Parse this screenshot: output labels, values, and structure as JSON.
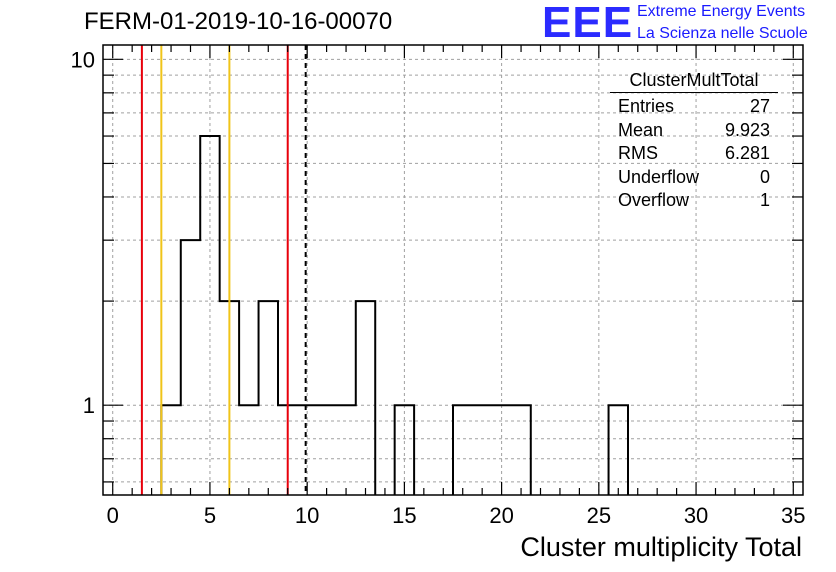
{
  "run_title": "FERM-01-2019-10-16-00070",
  "logo": {
    "mark": "EEE",
    "line1": "Extreme Energy Events",
    "line2": "La Scienza nelle Scuole",
    "color": "#2b2bff"
  },
  "stats_box": {
    "title": "ClusterMultTotal",
    "rows": [
      {
        "label": "Entries",
        "value": "27"
      },
      {
        "label": "Mean",
        "value": "9.923"
      },
      {
        "label": "RMS",
        "value": "6.281"
      },
      {
        "label": "Underflow",
        "value": "0"
      },
      {
        "label": "Overflow",
        "value": "1"
      }
    ]
  },
  "chart_data": {
    "type": "bar",
    "histogram": true,
    "xlabel": "Cluster multiplicity Total",
    "ylabel": "",
    "xlim": [
      -0.5,
      35.5
    ],
    "ylim": [
      0.55,
      11
    ],
    "log_y": true,
    "grid": true,
    "x_ticks": [
      0,
      5,
      10,
      15,
      20,
      25,
      30,
      35
    ],
    "y_ticks": [
      1,
      10
    ],
    "bin_width": 1,
    "bins": [
      {
        "x_low": 2.5,
        "count": 1
      },
      {
        "x_low": 3.5,
        "count": 3
      },
      {
        "x_low": 4.5,
        "count": 6
      },
      {
        "x_low": 5.5,
        "count": 2
      },
      {
        "x_low": 6.5,
        "count": 1
      },
      {
        "x_low": 7.5,
        "count": 2
      },
      {
        "x_low": 8.5,
        "count": 1
      },
      {
        "x_low": 9.5,
        "count": 1
      },
      {
        "x_low": 10.5,
        "count": 1
      },
      {
        "x_low": 11.5,
        "count": 1
      },
      {
        "x_low": 12.5,
        "count": 2
      },
      {
        "x_low": 14.5,
        "count": 1
      },
      {
        "x_low": 17.5,
        "count": 1
      },
      {
        "x_low": 18.5,
        "count": 1
      },
      {
        "x_low": 19.5,
        "count": 1
      },
      {
        "x_low": 20.5,
        "count": 1
      },
      {
        "x_low": 25.5,
        "count": 1
      }
    ],
    "markers": [
      {
        "x": 1.5,
        "color": "#e8000b",
        "style": "solid"
      },
      {
        "x": 2.5,
        "color": "#f0c419",
        "style": "solid"
      },
      {
        "x": 6.0,
        "color": "#f0c419",
        "style": "solid"
      },
      {
        "x": 9.0,
        "color": "#e8000b",
        "style": "solid"
      },
      {
        "x": 9.923,
        "color": "#000000",
        "style": "dashed"
      }
    ]
  }
}
